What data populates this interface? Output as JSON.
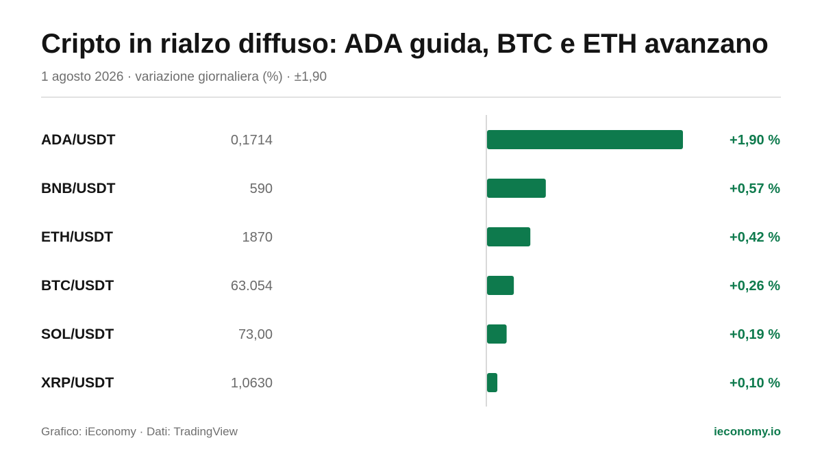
{
  "header": {
    "title": "Cripto in rialzo diffuso: ADA guida, BTC e ETH avanzano",
    "subtitle": "1 agosto 2026 · variazione giornaliera (%) · ±1,90"
  },
  "chart_data": {
    "type": "bar",
    "orientation": "horizontal",
    "categories": [
      "ADA/USDT",
      "BNB/USDT",
      "ETH/USDT",
      "BTC/USDT",
      "SOL/USDT",
      "XRP/USDT"
    ],
    "prices": [
      "0,1714",
      "590",
      "1870",
      "63.054",
      "73,00",
      "1,0630"
    ],
    "values": [
      1.9,
      0.57,
      0.42,
      0.26,
      0.19,
      0.1
    ],
    "value_labels": [
      "+1,90 %",
      "+0,57 %",
      "+0,42 %",
      "+0,26 %",
      "+0,19 %",
      "+0,10 %"
    ],
    "xlim": [
      -1.9,
      1.9
    ],
    "grid": false,
    "colors": {
      "positive": "#0e7a4d",
      "baseline": "#d9d9d9"
    }
  },
  "footer": {
    "source": "Grafico: iEconomy · Dati: TradingView",
    "brand": "ieconomy.io"
  }
}
